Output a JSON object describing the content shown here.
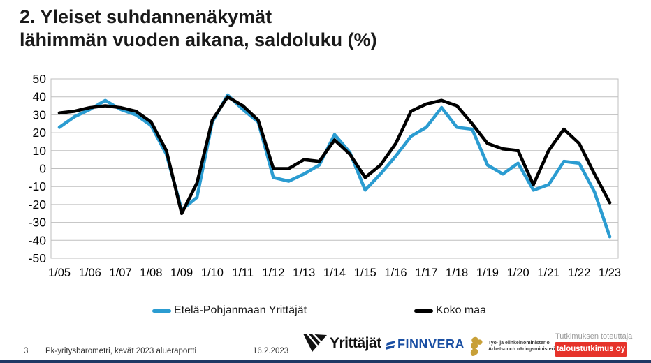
{
  "title": {
    "line1": "2. Yleiset suhdannenäkymät",
    "line2": "lähimmän vuoden aikana, saldoluku (%)"
  },
  "chart_data": {
    "type": "line",
    "title": "2. Yleiset suhdannenäkymät lähimmän vuoden aikana, saldoluku (%)",
    "categories": [
      "1/05",
      "2/05",
      "1/06",
      "2/06",
      "1/07",
      "2/07",
      "1/08",
      "2/08",
      "1/09",
      "2/09",
      "1/10",
      "2/10",
      "1/11",
      "2/11",
      "1/12",
      "2/12",
      "1/13",
      "2/13",
      "1/14",
      "2/14",
      "1/15",
      "2/15",
      "1/16",
      "2/16",
      "1/17",
      "2/17",
      "1/18",
      "2/18",
      "1/19",
      "2/19",
      "1/20",
      "2/20",
      "1/21",
      "2/21",
      "1/22",
      "2/22",
      "1/23"
    ],
    "x_tick_labels": [
      "1/05",
      "1/06",
      "1/07",
      "1/08",
      "1/09",
      "1/10",
      "1/11",
      "1/12",
      "1/13",
      "1/14",
      "1/15",
      "1/16",
      "1/17",
      "1/18",
      "1/19",
      "1/20",
      "1/21",
      "1/22",
      "1/23"
    ],
    "series": [
      {
        "name": "Etelä-Pohjanmaan Yrittäjät",
        "color": "#2b9cd1",
        "values": [
          23,
          29,
          33,
          38,
          33,
          30,
          24,
          8,
          -23,
          -16,
          26,
          41,
          33,
          26,
          -5,
          -7,
          -3,
          2,
          19,
          9,
          -12,
          -3,
          7,
          18,
          23,
          34,
          23,
          22,
          2,
          -3,
          3,
          -12,
          -9,
          4,
          3,
          -13,
          -38
        ]
      },
      {
        "name": "Koko maa",
        "color": "#000000",
        "values": [
          31,
          32,
          34,
          35,
          34,
          32,
          26,
          10,
          -25,
          -8,
          27,
          40,
          35,
          27,
          0,
          0,
          5,
          4,
          16,
          8,
          -5,
          2,
          14,
          32,
          36,
          38,
          35,
          25,
          14,
          11,
          10,
          -9,
          10,
          22,
          14,
          -3,
          -19
        ]
      }
    ],
    "xlabel": "",
    "ylabel": "",
    "ylim": [
      -50,
      50
    ],
    "y_ticks": [
      50,
      40,
      30,
      20,
      10,
      0,
      -10,
      -20,
      -30,
      -40,
      -50
    ],
    "grid": true,
    "grid_color": "#bfbfbf",
    "legend_position": "bottom"
  },
  "legend": {
    "items": [
      {
        "label": "Etelä-Pohjanmaan Yrittäjät",
        "color": "#2b9cd1"
      },
      {
        "label": "Koko maa",
        "color": "#000000"
      }
    ]
  },
  "footer": {
    "page_number": "3",
    "report_title": "Pk-yritysbarometri, kevät 2023 alueraportti",
    "date": "16.2.2023",
    "logos": {
      "yrittajat": {
        "text": "Yrittäjät"
      },
      "finnvera": {
        "text": "FINNVERA",
        "color": "#1a4fa3"
      },
      "ministry": {
        "line1": "Työ- ja elinkeinoministeriö",
        "line2": "Arbets- och näringsministeriet"
      },
      "taloustutkimus": {
        "tagline": "Tutkimuksen toteuttaja",
        "text": "taloustutkimus oy",
        "color": "#e6332a"
      }
    }
  }
}
